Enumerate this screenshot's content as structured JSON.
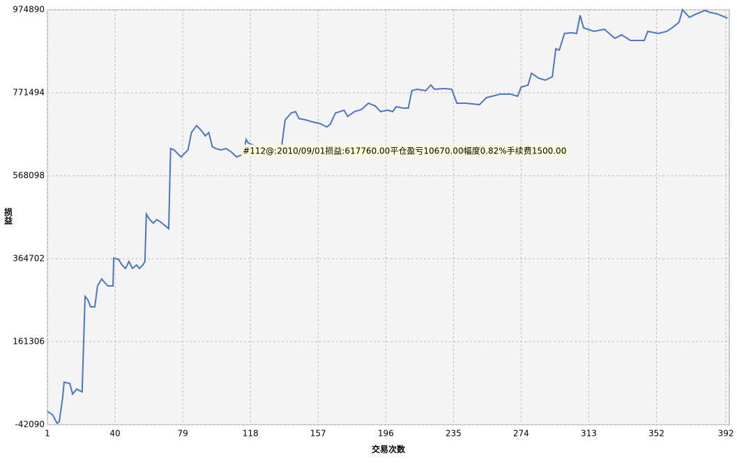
{
  "chart_data": {
    "type": "line",
    "xlabel": "交易次数",
    "ylabel": "损益",
    "xlim": [
      1,
      394
    ],
    "ylim": [
      -42090,
      974890
    ],
    "xticks": [
      1,
      40,
      79,
      118,
      157,
      196,
      235,
      274,
      313,
      352,
      392
    ],
    "yticks": [
      -42090,
      161306,
      364702,
      568098,
      771494,
      974890
    ],
    "grid": true,
    "annotation": {
      "x": 112,
      "y": 617760,
      "text": "#112@:2010/09/01损益:617760.00平仓盈亏10670.00幅度0.82%手续费1500.00"
    },
    "x": [
      1,
      4,
      6.6,
      7.8,
      9.8,
      10.6,
      13.9,
      15.5,
      17.9,
      21,
      22.7,
      24.3,
      25.9,
      28.3,
      29.9,
      32.3,
      33.9,
      35.9,
      38.8,
      39.2,
      42,
      44,
      46,
      48,
      50,
      52.4,
      54,
      56,
      57.2,
      58,
      60,
      62,
      64,
      66,
      68,
      70.9,
      72,
      74,
      76,
      78,
      80,
      82,
      84,
      87,
      90,
      92,
      94,
      96,
      98,
      101,
      104,
      107,
      110,
      112,
      114,
      115.5,
      116.7,
      126,
      132,
      136,
      138,
      141.5,
      144,
      146,
      150,
      154,
      158,
      162,
      164,
      167,
      172,
      174,
      178,
      182,
      186,
      190,
      193,
      197,
      200,
      202,
      206,
      209,
      211,
      214,
      219,
      222,
      224,
      230,
      234,
      237,
      242,
      250,
      254,
      262,
      268,
      272,
      274,
      278,
      280,
      284,
      288,
      292,
      294,
      296,
      299,
      303,
      306,
      308,
      310,
      316,
      322,
      328,
      332,
      337,
      345,
      347,
      353,
      358,
      361,
      365,
      367,
      371,
      375,
      380,
      383,
      387,
      391,
      393
    ],
    "series": [
      {
        "name": "损益",
        "color": "#4a74c6",
        "values": [
          -9600,
          -18000,
          -38700,
          -35000,
          24600,
          62200,
          58800,
          33100,
          45100,
          38200,
          272400,
          263900,
          246800,
          246800,
          298200,
          315100,
          306600,
          298000,
          298000,
          366400,
          363000,
          349300,
          340800,
          357900,
          340800,
          349300,
          340800,
          349300,
          357900,
          474100,
          460400,
          451900,
          460400,
          455300,
          448400,
          438200,
          634700,
          631300,
          622700,
          614200,
          622700,
          631300,
          674000,
          691100,
          677400,
          665500,
          674000,
          639800,
          634700,
          631300,
          634700,
          626200,
          614200,
          617760,
          619500,
          657000,
          648400,
          631300,
          619300,
          639800,
          704800,
          721900,
          725300,
          708200,
          704800,
          699700,
          696300,
          687700,
          694600,
          721900,
          728700,
          713300,
          725300,
          730400,
          745800,
          739000,
          725300,
          728700,
          725300,
          737300,
          733800,
          733800,
          776600,
          780000,
          776600,
          790300,
          780000,
          781700,
          780000,
          745800,
          745800,
          742400,
          759500,
          768000,
          768000,
          762900,
          785200,
          790300,
          819300,
          807400,
          802300,
          810800,
          879200,
          875800,
          916800,
          918500,
          916800,
          961300,
          930500,
          922000,
          927100,
          904900,
          913400,
          899700,
          899700,
          922000,
          916800,
          922000,
          930500,
          944200,
          974890,
          956200,
          964700,
          973300,
          968200,
          964700,
          957900,
          954500
        ]
      }
    ]
  }
}
